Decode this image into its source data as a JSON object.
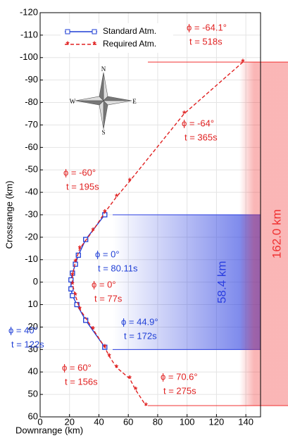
{
  "chart_data": {
    "type": "line",
    "xlabel": "Downrange (km)",
    "ylabel": "Crossrange (km)",
    "xlim": [
      0,
      150
    ],
    "xticks": [
      0,
      20,
      40,
      60,
      80,
      100,
      120,
      140
    ],
    "ylim": [
      -120,
      60
    ],
    "yticks": [
      -120,
      -110,
      -100,
      -90,
      -80,
      -70,
      -60,
      -50,
      -40,
      -30,
      -20,
      -10,
      0,
      10,
      20,
      30,
      40,
      50,
      60
    ],
    "grid": true,
    "legend": "upper left",
    "series": [
      {
        "name": "Standard Atm.",
        "color": "#1f3fd6",
        "marker": "square",
        "linestyle": "solid",
        "x": [
          44,
          31,
          26,
          24,
          22,
          21,
          21,
          22,
          25,
          31,
          44
        ],
        "values": [
          -30,
          -19,
          -12,
          -8,
          -4,
          -1,
          3,
          6,
          10,
          17,
          29
        ]
      },
      {
        "name": "Required Atm.",
        "color": "#e02020",
        "marker": "star",
        "linestyle": "dashed",
        "x": [
          138,
          98,
          61,
          52,
          44,
          36,
          27,
          24,
          22,
          22,
          24,
          27,
          36,
          44,
          47,
          52,
          61,
          65,
          72
        ],
        "values": [
          -98,
          -75,
          -45,
          -38,
          -31,
          -23,
          -15,
          -9,
          -3,
          1,
          6,
          12,
          21,
          29,
          33,
          38,
          43,
          48,
          55
        ]
      }
    ],
    "bands": [
      {
        "label": "58.4 km",
        "from": -30,
        "to": 30,
        "color": "#2b3fe0"
      },
      {
        "label": "162.0 km",
        "from": -98,
        "to": 55,
        "color": "#f03030"
      }
    ],
    "annotations": [
      {
        "lines": [
          "ϕ = -64.1°",
          "t = 518s"
        ],
        "color": "#e02020"
      },
      {
        "lines": [
          "ϕ = -64°",
          "t = 365s"
        ],
        "color": "#e02020"
      },
      {
        "lines": [
          "ϕ = -60°",
          "t = 195s"
        ],
        "color": "#e02020"
      },
      {
        "lines": [
          "ϕ = 0°",
          "t = 80.11s"
        ],
        "color": "#1f3fd6"
      },
      {
        "lines": [
          "ϕ = 0°",
          "t = 77s"
        ],
        "color": "#e02020"
      },
      {
        "lines": [
          "ϕ = 44.9°",
          "t = 172s"
        ],
        "color": "#1f3fd6"
      },
      {
        "lines": [
          "ϕ = 40°",
          "t = 122s"
        ],
        "color": "#1f3fd6"
      },
      {
        "lines": [
          "ϕ = 60°",
          "t = 156s"
        ],
        "color": "#e02020"
      },
      {
        "lines": [
          "ϕ = 70.6°",
          "t = 275s"
        ],
        "color": "#e02020"
      }
    ],
    "compass": [
      "N",
      "E",
      "S",
      "W"
    ]
  }
}
